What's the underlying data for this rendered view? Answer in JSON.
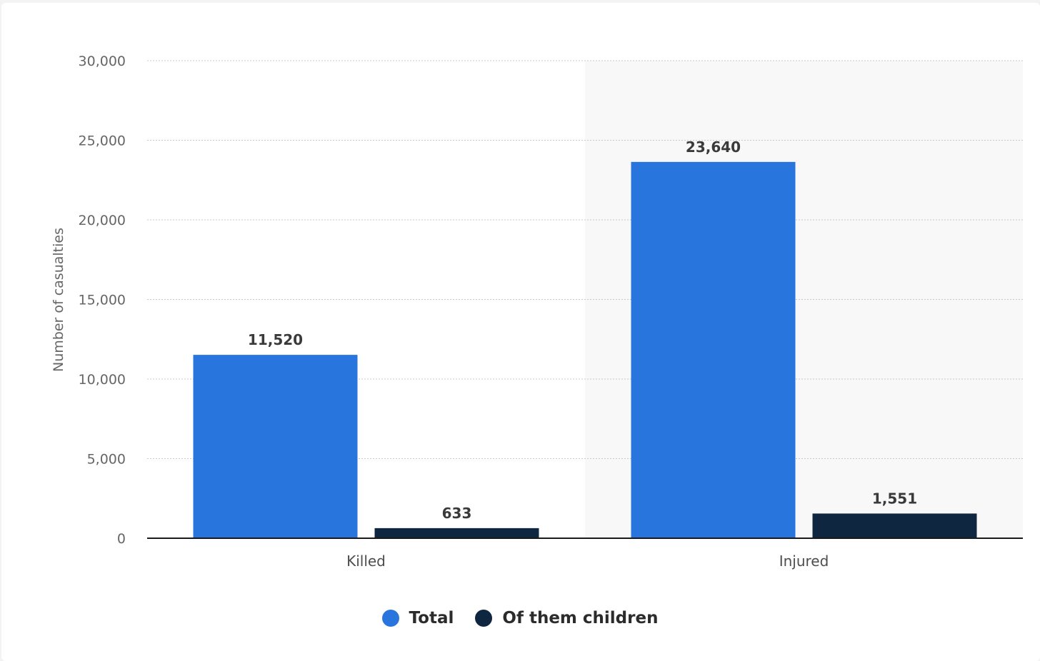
{
  "chart_data": {
    "type": "bar",
    "categories": [
      "Killed",
      "Injured"
    ],
    "series": [
      {
        "name": "Total",
        "values": [
          11520,
          23640
        ],
        "labels": [
          "11,520",
          "23,640"
        ],
        "color": "#2876dd"
      },
      {
        "name": "Of them children",
        "values": [
          633,
          1551
        ],
        "labels": [
          "633",
          "1,551"
        ],
        "color": "#0f2640"
      }
    ],
    "title": "",
    "xlabel": "",
    "ylabel": "Number of casualties",
    "ylim": [
      0,
      30000
    ],
    "yticks": [
      0,
      5000,
      10000,
      15000,
      20000,
      25000,
      30000
    ],
    "ytick_labels": [
      "0",
      "5,000",
      "10,000",
      "15,000",
      "20,000",
      "25,000",
      "30,000"
    ],
    "grid": true,
    "highlighted_category": "Injured",
    "legend_position": "bottom-center"
  }
}
